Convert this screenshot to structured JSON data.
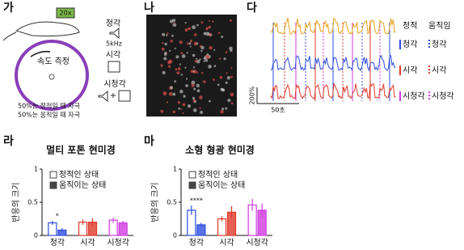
{
  "panels": [
    "가",
    "나",
    "다",
    "라",
    "마"
  ],
  "setup": {
    "objective": "20x",
    "speed": "속도 측정",
    "auditory": "청각",
    "freq": "5kHz",
    "visual": "시각",
    "audiovisual": "시청각",
    "note_still": "50%는 정적일 때 자극",
    "note_moving": "50%는 움직일 때 자극"
  },
  "traces": {
    "header": [
      "정적",
      "움직임"
    ],
    "rows": [
      [
        "청각",
        "청각"
      ],
      [
        "시각",
        "시각"
      ],
      [
        "시청각",
        "시청각"
      ]
    ],
    "colors": [
      "#2f4de0",
      "#e0392b",
      "#d03be0"
    ],
    "scale_y": "200%",
    "scale_x": "50초"
  },
  "chart_data": [
    {
      "type": "bar",
      "title": "멀티 포톤 현미경",
      "ylabel": "반응의 크기",
      "categories": [
        "청각",
        "시각",
        "시청각"
      ],
      "category_colors": [
        "#2f4de0",
        "#e0392b",
        "#d03be0"
      ],
      "series": [
        {
          "name": "정적인 상태",
          "values": [
            0.19,
            0.2,
            0.23
          ],
          "errors": [
            0.03,
            0.04,
            0.04
          ]
        },
        {
          "name": "움직이는 상태",
          "values": [
            0.08,
            0.2,
            0.19
          ],
          "errors": [
            0.03,
            0.06,
            0.03
          ]
        }
      ],
      "annotations": [
        {
          "text": "*",
          "category": "청각"
        }
      ],
      "ylim": [
        0,
        1
      ],
      "yticks": [
        0,
        0.5,
        1
      ]
    },
    {
      "type": "bar",
      "title": "소형 형광 현미경",
      "ylabel": "반응의 크기",
      "categories": [
        "청각",
        "시각",
        "시청각"
      ],
      "category_colors": [
        "#2f4de0",
        "#e0392b",
        "#d03be0"
      ],
      "series": [
        {
          "name": "정적인 상태",
          "values": [
            0.38,
            0.25,
            0.46
          ],
          "errors": [
            0.07,
            0.04,
            0.09
          ]
        },
        {
          "name": "움직이는 상태",
          "values": [
            0.16,
            0.35,
            0.38
          ],
          "errors": [
            0.03,
            0.09,
            0.1
          ]
        }
      ],
      "annotations": [
        {
          "text": "****",
          "category": "청각"
        }
      ],
      "ylim": [
        0,
        1
      ],
      "yticks": [
        0,
        0.5,
        1
      ]
    }
  ]
}
